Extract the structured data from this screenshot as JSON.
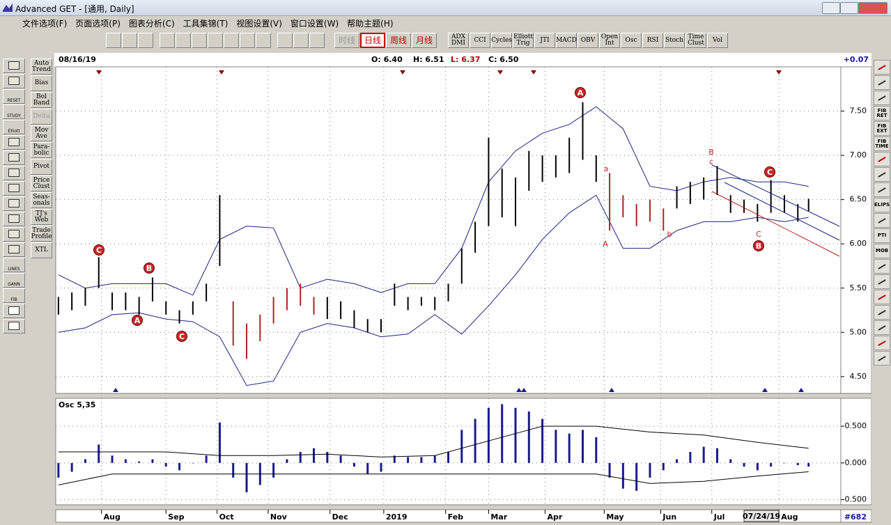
{
  "window": {
    "title": "Advanced GET - [通用, Daily]"
  },
  "menu": [
    "文件选项(F)",
    "页面选项(P)",
    "图表分析(C)",
    "工具集锦(T)",
    "视图设置(V)",
    "窗口设置(W)",
    "帮助主题(H)"
  ],
  "toolbar": {
    "periods": [
      "时线",
      "日线",
      "周线",
      "月线"
    ],
    "studies": [
      "ADX DMI",
      "CCI",
      "Cycles",
      "Elliott Trig",
      "JTI",
      "MACD",
      "OBV",
      "Open Int",
      "Osc",
      "RSI",
      "Stoch",
      "Time Clust",
      "Vol"
    ]
  },
  "left_icons": [
    "RESET",
    "STUDY",
    "Elliott",
    "LINES",
    "GANN",
    "FIB"
  ],
  "left_studies": [
    "Auto Trend",
    "Bias",
    "Bol Band",
    "Delta",
    "Mov Ave",
    "Para-bolic",
    "Pivot",
    "Price Clust",
    "Seas-onals",
    "TJ's Web",
    "Trade Profile",
    "XTL"
  ],
  "right_tools": [
    "FIB RET",
    "FIB EXT",
    "FIB TIME",
    "ELIPS",
    "PTI",
    "MOB"
  ],
  "header": {
    "date": "08/16/19",
    "open": "O: 6.40",
    "high": "H: 6.51",
    "low": "L: 6.37",
    "close": "C: 6.50",
    "change": "+0.07"
  },
  "status": {
    "cursor_date": "07/24/19",
    "bar_count": "#682"
  },
  "chart_data": [
    {
      "type": "range",
      "x": [
        0,
        5,
        10,
        15,
        20,
        25,
        30,
        35,
        40,
        45,
        50,
        55,
        60,
        65,
        70,
        75,
        80,
        85,
        90,
        95,
        100,
        105,
        110,
        115,
        120,
        125,
        130,
        135,
        140,
        145,
        150,
        155,
        160,
        165,
        170,
        175,
        180,
        185,
        190,
        195,
        200,
        205,
        210,
        215,
        220,
        225,
        230,
        235,
        240,
        245,
        250,
        255,
        260,
        265,
        270,
        275,
        279
      ],
      "high": [
        5.4,
        5.45,
        5.5,
        5.85,
        5.45,
        5.45,
        5.4,
        5.62,
        5.35,
        5.25,
        5.35,
        5.55,
        6.55,
        5.35,
        5.1,
        5.2,
        5.4,
        5.5,
        5.55,
        5.4,
        5.4,
        5.35,
        5.25,
        5.15,
        5.15,
        5.55,
        5.4,
        5.4,
        5.4,
        5.55,
        5.95,
        6.25,
        7.2,
        6.85,
        6.75,
        7.05,
        7.0,
        7.0,
        7.2,
        7.6,
        7.0,
        6.8,
        6.55,
        6.45,
        6.5,
        6.4,
        6.65,
        6.7,
        6.75,
        6.88,
        6.55,
        6.5,
        6.45,
        6.72,
        6.55,
        6.45,
        6.51
      ],
      "low": [
        5.2,
        5.25,
        5.3,
        5.5,
        5.25,
        5.25,
        5.2,
        5.35,
        5.2,
        5.1,
        5.2,
        5.35,
        5.75,
        4.85,
        4.7,
        4.9,
        5.1,
        5.25,
        5.3,
        5.2,
        5.15,
        5.15,
        5.05,
        5.0,
        5.0,
        5.3,
        5.25,
        5.3,
        5.25,
        5.35,
        5.55,
        5.9,
        6.2,
        6.3,
        6.2,
        6.6,
        6.7,
        6.75,
        6.8,
        6.95,
        6.7,
        6.15,
        6.3,
        6.2,
        6.25,
        6.15,
        6.4,
        6.45,
        6.5,
        6.55,
        6.35,
        6.35,
        6.25,
        6.35,
        6.35,
        6.25,
        6.37
      ],
      "colors": [
        "#000000",
        "#000000",
        "#000000",
        "#000000",
        "#000000",
        "#000000",
        "#000000",
        "#000000",
        "#000000",
        "#000000",
        "#000000",
        "#000000",
        "#000000",
        "#b22222",
        "#b22222",
        "#b22222",
        "#b22222",
        "#b22222",
        "#b22222",
        "#b22222",
        "#000000",
        "#000000",
        "#000000",
        "#000000",
        "#000000",
        "#000000",
        "#000000",
        "#000000",
        "#000000",
        "#000000",
        "#000000",
        "#000000",
        "#000000",
        "#000000",
        "#000000",
        "#000000",
        "#000000",
        "#000000",
        "#000000",
        "#000000",
        "#000000",
        "#b22222",
        "#b22222",
        "#b22222",
        "#b22222",
        "#b22222",
        "#000000",
        "#000000",
        "#000000",
        "#000000",
        "#000000",
        "#000000",
        "#000000",
        "#000000",
        "#000000",
        "#000000",
        "#000000"
      ],
      "bands": {
        "color": "#1a237e",
        "x": [
          0,
          10,
          20,
          30,
          40,
          50,
          60,
          70,
          80,
          90,
          100,
          110,
          120,
          130,
          140,
          150,
          160,
          170,
          180,
          190,
          200,
          210,
          220,
          230,
          240,
          250,
          260,
          270,
          279
        ],
        "upper": [
          5.65,
          5.5,
          5.55,
          5.55,
          5.55,
          5.42,
          6.05,
          6.2,
          6.18,
          5.5,
          5.6,
          5.55,
          5.45,
          5.55,
          5.55,
          5.95,
          6.7,
          7.05,
          7.25,
          7.35,
          7.55,
          7.3,
          6.65,
          6.6,
          6.7,
          6.75,
          6.7,
          6.7,
          6.65
        ],
        "lower": [
          5.0,
          5.05,
          5.2,
          5.22,
          5.15,
          5.12,
          4.95,
          4.4,
          4.45,
          5.0,
          5.1,
          5.05,
          4.95,
          4.98,
          5.2,
          4.98,
          5.3,
          5.65,
          6.05,
          6.35,
          6.55,
          5.95,
          5.95,
          6.15,
          6.25,
          6.25,
          6.3,
          6.25,
          6.3
        ]
      },
      "wave_labels": [
        "C",
        "A",
        "B",
        "C",
        "A",
        "C",
        "B"
      ],
      "minor_labels": [
        "a",
        "A",
        "b",
        "B",
        "c",
        "C"
      ],
      "xlim": [
        -1,
        291
      ],
      "ylim": [
        4.31,
        8.0
      ],
      "yticks": [
        {
          "value": 7.5,
          "label": "7.50"
        },
        {
          "value": 7.0,
          "label": "7.00"
        },
        {
          "value": 6.5,
          "label": "6.50"
        },
        {
          "value": 6.0,
          "label": "6.00"
        },
        {
          "value": 5.5,
          "label": "5.50"
        },
        {
          "value": 5.0,
          "label": "5.00"
        },
        {
          "value": 4.5,
          "label": "4.50"
        }
      ],
      "grid": true
    },
    {
      "type": "bar",
      "title": "Osc 5,35",
      "color": "#1a1a8c",
      "x": [
        0,
        5,
        10,
        15,
        20,
        25,
        30,
        35,
        40,
        45,
        50,
        55,
        60,
        65,
        70,
        75,
        80,
        85,
        90,
        95,
        100,
        105,
        110,
        115,
        120,
        125,
        130,
        135,
        140,
        145,
        150,
        155,
        160,
        165,
        170,
        175,
        180,
        185,
        190,
        195,
        200,
        205,
        210,
        215,
        220,
        225,
        230,
        235,
        240,
        245,
        250,
        255,
        260,
        265,
        270,
        275,
        279
      ],
      "values": [
        -0.2,
        -0.12,
        0.05,
        0.25,
        0.1,
        0.05,
        0.02,
        0.05,
        -0.05,
        -0.1,
        0.0,
        0.1,
        0.55,
        -0.2,
        -0.4,
        -0.3,
        -0.2,
        0.05,
        0.15,
        0.2,
        0.15,
        0.1,
        -0.05,
        -0.15,
        -0.12,
        0.1,
        0.08,
        0.08,
        0.1,
        0.15,
        0.45,
        0.6,
        0.75,
        0.8,
        0.75,
        0.7,
        0.6,
        0.45,
        0.4,
        0.45,
        0.35,
        -0.2,
        -0.35,
        -0.38,
        -0.2,
        -0.1,
        0.05,
        0.15,
        0.22,
        0.2,
        0.05,
        -0.05,
        -0.1,
        -0.05,
        0.0,
        -0.03,
        -0.05
      ],
      "lines": {
        "color": "#000000",
        "x": [
          0,
          20,
          40,
          60,
          80,
          100,
          120,
          140,
          160,
          180,
          200,
          220,
          240,
          260,
          279
        ],
        "upper": [
          0.15,
          0.15,
          0.15,
          0.1,
          0.1,
          0.12,
          0.08,
          0.1,
          0.3,
          0.5,
          0.5,
          0.42,
          0.38,
          0.28,
          0.2
        ],
        "lower": [
          -0.3,
          -0.15,
          -0.15,
          -0.15,
          -0.15,
          -0.15,
          -0.15,
          -0.15,
          -0.15,
          -0.15,
          -0.15,
          -0.28,
          -0.25,
          -0.18,
          -0.12
        ]
      },
      "xlim": [
        -1,
        291
      ],
      "ylim": [
        -0.57,
        0.88
      ],
      "yticks": [
        {
          "value": 0.5,
          "label": "0.500"
        },
        {
          "value": 0.0,
          "label": "0.000"
        },
        {
          "value": -0.5,
          "label": "-0.500"
        }
      ],
      "xticks": [
        {
          "value": 16,
          "label": "Aug"
        },
        {
          "value": 40,
          "label": "Sep"
        },
        {
          "value": 59,
          "label": "Oct"
        },
        {
          "value": 78,
          "label": "Nov"
        },
        {
          "value": 101,
          "label": "Dec"
        },
        {
          "value": 121,
          "label": "2019"
        },
        {
          "value": 144,
          "label": "Feb"
        },
        {
          "value": 160,
          "label": "Mar"
        },
        {
          "value": 181,
          "label": "Apr"
        },
        {
          "value": 203,
          "label": "May"
        },
        {
          "value": 224,
          "label": "Jun"
        },
        {
          "value": 243,
          "label": "Jul"
        },
        {
          "value": 268,
          "label": "Aug"
        }
      ],
      "grid": true
    }
  ]
}
